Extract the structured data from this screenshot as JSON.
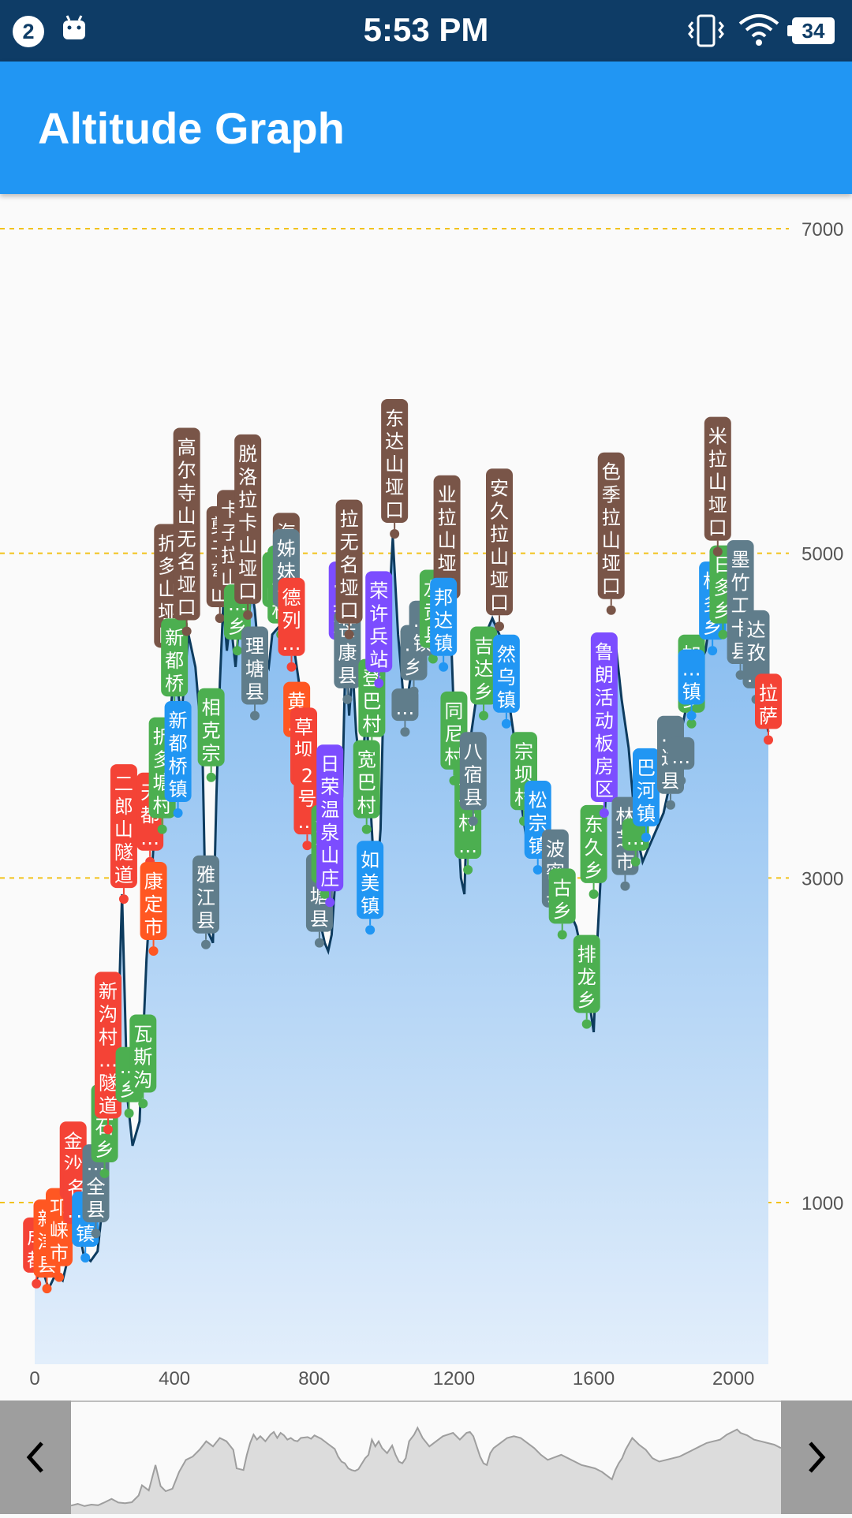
{
  "status_bar": {
    "notification_count": "2",
    "time": "5:53 PM",
    "battery": "34",
    "icons": [
      "android-icon",
      "vibrate-icon",
      "wifi-icon",
      "battery-icon"
    ]
  },
  "app_bar": {
    "title": "Altitude Graph"
  },
  "colors": {
    "status_bar": "#0e3c66",
    "app_bar": "#2196f3",
    "line": "#0d3b5e",
    "grid": "#f2c21b",
    "red": "#f44336",
    "orange": "#ff5722",
    "green": "#4caf50",
    "blue": "#2196f3",
    "brown": "#795548",
    "grey": "#607d8b",
    "purple": "#7c4dff"
  },
  "chart_data": {
    "type": "area",
    "xlim": [
      0,
      2100
    ],
    "ylim": [
      0,
      7000
    ],
    "x_ticks": [
      "0",
      "400",
      "800",
      "1200",
      "1600",
      "2000"
    ],
    "y_ticks": [
      "1000",
      "3000",
      "5000",
      "7000"
    ],
    "grid": "horizontal dashed",
    "profile": [
      [
        0,
        500
      ],
      [
        20,
        600
      ],
      [
        40,
        470
      ],
      [
        60,
        560
      ],
      [
        80,
        520
      ],
      [
        100,
        700
      ],
      [
        120,
        900
      ],
      [
        140,
        680
      ],
      [
        160,
        640
      ],
      [
        180,
        700
      ],
      [
        200,
        1100
      ],
      [
        210,
        1700
      ],
      [
        230,
        1400
      ],
      [
        250,
        2900
      ],
      [
        265,
        1650
      ],
      [
        280,
        1350
      ],
      [
        300,
        1500
      ],
      [
        320,
        2500
      ],
      [
        340,
        3200
      ],
      [
        360,
        3400
      ],
      [
        380,
        3800
      ],
      [
        400,
        4300
      ],
      [
        420,
        4000
      ],
      [
        440,
        4500
      ],
      [
        460,
        4300
      ],
      [
        480,
        3800
      ],
      [
        490,
        2700
      ],
      [
        510,
        2600
      ],
      [
        520,
        3500
      ],
      [
        530,
        4200
      ],
      [
        540,
        4700
      ],
      [
        550,
        4400
      ],
      [
        560,
        4600
      ],
      [
        575,
        4300
      ],
      [
        590,
        4700
      ],
      [
        600,
        4850
      ],
      [
        610,
        4500
      ],
      [
        620,
        4800
      ],
      [
        630,
        4650
      ],
      [
        640,
        4400
      ],
      [
        650,
        4500
      ],
      [
        660,
        4350
      ],
      [
        670,
        4300
      ],
      [
        680,
        4500
      ],
      [
        700,
        4550
      ],
      [
        710,
        4450
      ],
      [
        720,
        4650
      ],
      [
        740,
        4450
      ],
      [
        760,
        4150
      ],
      [
        780,
        3850
      ],
      [
        790,
        3400
      ],
      [
        800,
        3100
      ],
      [
        810,
        3000
      ],
      [
        820,
        2700
      ],
      [
        830,
        2600
      ],
      [
        840,
        2550
      ],
      [
        850,
        2650
      ],
      [
        870,
        3300
      ],
      [
        880,
        3500
      ],
      [
        890,
        4400
      ],
      [
        900,
        4000
      ],
      [
        910,
        4300
      ],
      [
        920,
        3900
      ],
      [
        935,
        3600
      ],
      [
        950,
        4050
      ],
      [
        960,
        3500
      ],
      [
        970,
        3100
      ],
      [
        980,
        3000
      ],
      [
        990,
        3300
      ],
      [
        1000,
        4300
      ],
      [
        1015,
        4700
      ],
      [
        1025,
        5100
      ],
      [
        1040,
        4500
      ],
      [
        1060,
        4000
      ],
      [
        1080,
        4300
      ],
      [
        1100,
        4600
      ],
      [
        1130,
        4800
      ],
      [
        1150,
        4400
      ],
      [
        1170,
        4800
      ],
      [
        1180,
        4850
      ],
      [
        1190,
        4600
      ],
      [
        1200,
        4000
      ],
      [
        1210,
        3400
      ],
      [
        1220,
        3000
      ],
      [
        1230,
        2900
      ],
      [
        1240,
        3600
      ],
      [
        1250,
        3900
      ],
      [
        1270,
        4200
      ],
      [
        1290,
        4500
      ],
      [
        1310,
        4600
      ],
      [
        1330,
        4500
      ],
      [
        1350,
        4200
      ],
      [
        1370,
        3900
      ],
      [
        1390,
        3500
      ],
      [
        1410,
        3200
      ],
      [
        1430,
        3350
      ],
      [
        1450,
        3500
      ],
      [
        1470,
        3300
      ],
      [
        1490,
        3100
      ],
      [
        1510,
        2900
      ],
      [
        1530,
        2800
      ],
      [
        1550,
        2700
      ],
      [
        1570,
        2500
      ],
      [
        1590,
        2200
      ],
      [
        1600,
        2050
      ],
      [
        1610,
        2600
      ],
      [
        1620,
        3000
      ],
      [
        1630,
        3300
      ],
      [
        1640,
        3800
      ],
      [
        1660,
        4500
      ],
      [
        1670,
        4300
      ],
      [
        1680,
        4100
      ],
      [
        1700,
        3800
      ],
      [
        1720,
        3300
      ],
      [
        1740,
        3100
      ],
      [
        1760,
        3200
      ],
      [
        1780,
        3300
      ],
      [
        1800,
        3400
      ],
      [
        1820,
        3600
      ],
      [
        1840,
        3800
      ],
      [
        1860,
        4000
      ],
      [
        1880,
        4200
      ],
      [
        1900,
        4300
      ],
      [
        1910,
        4350
      ],
      [
        1920,
        4400
      ],
      [
        1940,
        4700
      ],
      [
        1960,
        4900
      ],
      [
        1970,
        5000
      ],
      [
        1980,
        4800
      ],
      [
        2000,
        4650
      ],
      [
        2020,
        4400
      ],
      [
        2040,
        4300
      ],
      [
        2060,
        4200
      ],
      [
        2080,
        4100
      ],
      [
        2100,
        3900
      ]
    ],
    "markers": [
      {
        "name": "成都",
        "x": 5,
        "y": 500,
        "color": "red"
      },
      {
        "name": "新津县",
        "x": 35,
        "y": 470,
        "color": "orange"
      },
      {
        "name": "邛崃市",
        "x": 70,
        "y": 540,
        "color": "orange"
      },
      {
        "name": "金沙…",
        "x": 110,
        "y": 950,
        "color": "red"
      },
      {
        "name": "名…",
        "x": 120,
        "y": 800,
        "color": "red"
      },
      {
        "name": "…镇",
        "x": 145,
        "y": 660,
        "color": "blue"
      },
      {
        "name": "…全县",
        "x": 175,
        "y": 810,
        "color": "grey"
      },
      {
        "name": "…石乡",
        "x": 200,
        "y": 1180,
        "color": "green"
      },
      {
        "name": "新沟村…隧道",
        "x": 210,
        "y": 1450,
        "color": "red"
      },
      {
        "name": "…乡",
        "x": 270,
        "y": 1550,
        "color": "green"
      },
      {
        "name": "瓦斯沟",
        "x": 310,
        "y": 1610,
        "color": "green"
      },
      {
        "name": "二郎山隧道",
        "x": 255,
        "y": 2870,
        "color": "red"
      },
      {
        "name": "天都…",
        "x": 330,
        "y": 3100,
        "color": "red"
      },
      {
        "name": "康定市",
        "x": 340,
        "y": 2550,
        "color": "orange"
      },
      {
        "name": "折多塘村",
        "x": 365,
        "y": 3300,
        "color": "green"
      },
      {
        "name": "折多山垭口",
        "x": 380,
        "y": 4350,
        "color": "brown"
      },
      {
        "name": "新都桥",
        "x": 400,
        "y": 4050,
        "color": "green"
      },
      {
        "name": "新都桥镇",
        "x": 410,
        "y": 3400,
        "color": "blue"
      },
      {
        "name": "高尔寺山无名垭口",
        "x": 435,
        "y": 4520,
        "color": "brown"
      },
      {
        "name": "雅江县",
        "x": 490,
        "y": 2590,
        "color": "grey"
      },
      {
        "name": "相克宗",
        "x": 505,
        "y": 3620,
        "color": "green"
      },
      {
        "name": "剪子弯山",
        "x": 530,
        "y": 4600,
        "color": "brown"
      },
      {
        "name": "卡子拉山",
        "x": 560,
        "y": 4700,
        "color": "brown"
      },
      {
        "name": "…乡",
        "x": 580,
        "y": 4400,
        "color": "green"
      },
      {
        "name": "脱洛拉卡山垭口",
        "x": 610,
        "y": 4620,
        "color": "brown"
      },
      {
        "name": "理塘县",
        "x": 630,
        "y": 4000,
        "color": "grey"
      },
      {
        "name": "海子山",
        "x": 720,
        "y": 4700,
        "color": "brown"
      },
      {
        "name": "…岭",
        "x": 690,
        "y": 4600,
        "color": "green"
      },
      {
        "name": "…戈村",
        "x": 705,
        "y": 4500,
        "color": "green"
      },
      {
        "name": "姊妹湖",
        "x": 720,
        "y": 4600,
        "color": "grey"
      },
      {
        "name": "德列…",
        "x": 735,
        "y": 4300,
        "color": "red"
      },
      {
        "name": "黄…",
        "x": 750,
        "y": 3800,
        "color": "orange"
      },
      {
        "name": "草坝…",
        "x": 770,
        "y": 3500,
        "color": "red"
      },
      {
        "name": "2号…",
        "x": 780,
        "y": 3200,
        "color": "red"
      },
      {
        "name": "巴塘县",
        "x": 815,
        "y": 2600,
        "color": "grey"
      },
      {
        "name": "金沙…",
        "x": 830,
        "y": 2900,
        "color": "green"
      },
      {
        "name": "日荣温泉山庄",
        "x": 845,
        "y": 2850,
        "color": "purple"
      },
      {
        "name": "…兵站",
        "x": 880,
        "y": 4400,
        "color": "purple"
      },
      {
        "name": "芒康县",
        "x": 895,
        "y": 4100,
        "color": "grey"
      },
      {
        "name": "拉无名垭口",
        "x": 900,
        "y": 4500,
        "color": "brown"
      },
      {
        "name": "宽巴村",
        "x": 950,
        "y": 3300,
        "color": "green"
      },
      {
        "name": "登巴村",
        "x": 965,
        "y": 3800,
        "color": "green"
      },
      {
        "name": "如美镇",
        "x": 960,
        "y": 2680,
        "color": "blue"
      },
      {
        "name": "荣许兵站",
        "x": 985,
        "y": 4200,
        "color": "purple"
      },
      {
        "name": "东达山垭口",
        "x": 1030,
        "y": 5120,
        "color": "brown"
      },
      {
        "name": "…",
        "x": 1060,
        "y": 3900,
        "color": "grey"
      },
      {
        "name": "…乡",
        "x": 1085,
        "y": 4150,
        "color": "grey"
      },
      {
        "name": "…镇",
        "x": 1110,
        "y": 4300,
        "color": "grey"
      },
      {
        "name": "左贡县",
        "x": 1140,
        "y": 4350,
        "color": "green"
      },
      {
        "name": "业拉山垭口",
        "x": 1180,
        "y": 4650,
        "color": "brown"
      },
      {
        "name": "邦达镇",
        "x": 1170,
        "y": 4300,
        "color": "blue"
      },
      {
        "name": "同尼村",
        "x": 1200,
        "y": 3600,
        "color": "green"
      },
      {
        "name": "八宿村…",
        "x": 1240,
        "y": 3050,
        "color": "green"
      },
      {
        "name": "八宿县",
        "x": 1255,
        "y": 3350,
        "color": "grey"
      },
      {
        "name": "吉达乡",
        "x": 1285,
        "y": 4000,
        "color": "green"
      },
      {
        "name": "安久拉山垭口",
        "x": 1330,
        "y": 4550,
        "color": "brown"
      },
      {
        "name": "然乌镇",
        "x": 1350,
        "y": 3950,
        "color": "blue"
      },
      {
        "name": "宗坝村",
        "x": 1400,
        "y": 3350,
        "color": "green"
      },
      {
        "name": "松宗镇",
        "x": 1440,
        "y": 3050,
        "color": "blue"
      },
      {
        "name": "波密县",
        "x": 1490,
        "y": 2750,
        "color": "grey"
      },
      {
        "name": "古乡",
        "x": 1510,
        "y": 2650,
        "color": "green"
      },
      {
        "name": "排龙乡",
        "x": 1580,
        "y": 2100,
        "color": "green"
      },
      {
        "name": "东久乡",
        "x": 1600,
        "y": 2900,
        "color": "green"
      },
      {
        "name": "鲁朗活动板房区",
        "x": 1630,
        "y": 3400,
        "color": "purple"
      },
      {
        "name": "色季拉山垭口",
        "x": 1650,
        "y": 4650,
        "color": "brown"
      },
      {
        "name": "林芝市",
        "x": 1690,
        "y": 2950,
        "color": "grey"
      },
      {
        "name": "…",
        "x": 1720,
        "y": 3100,
        "color": "green"
      },
      {
        "name": "巴河镇",
        "x": 1750,
        "y": 3250,
        "color": "blue"
      },
      {
        "name": "…达县",
        "x": 1820,
        "y": 3450,
        "color": "grey"
      },
      {
        "name": "…",
        "x": 1850,
        "y": 3600,
        "color": "grey"
      },
      {
        "name": "加兴乡",
        "x": 1880,
        "y": 3950,
        "color": "green"
      },
      {
        "name": "…镇",
        "x": 1880,
        "y": 4000,
        "color": "blue"
      },
      {
        "name": "松多乡",
        "x": 1940,
        "y": 4400,
        "color": "blue"
      },
      {
        "name": "日多乡",
        "x": 1970,
        "y": 4500,
        "color": "green"
      },
      {
        "name": "米拉山垭口",
        "x": 1955,
        "y": 5010,
        "color": "brown"
      },
      {
        "name": "墨竹工卡县",
        "x": 2020,
        "y": 4250,
        "color": "grey"
      },
      {
        "name": "达孜…",
        "x": 2065,
        "y": 4100,
        "color": "grey"
      },
      {
        "name": "拉萨",
        "x": 2100,
        "y": 3850,
        "color": "red"
      }
    ]
  },
  "navigation": {
    "prev": "‹",
    "next": "›"
  }
}
